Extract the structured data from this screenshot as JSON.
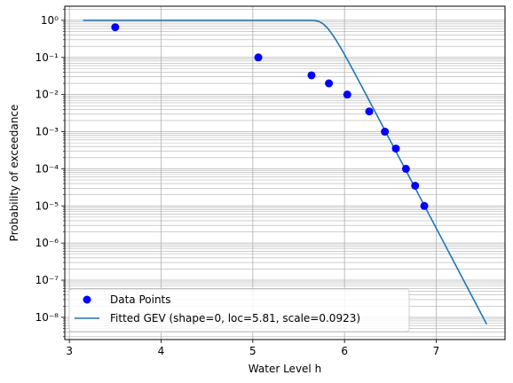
{
  "chart_data": {
    "type": "scatter",
    "xlabel": "Water Level h",
    "ylabel": "Probability of exceedance",
    "xlim": [
      2.95,
      7.75
    ],
    "ylim_log10": [
      -8.6,
      0.38
    ],
    "yscale": "log",
    "grid": "major and minor",
    "legend_position": "lower-left",
    "x_ticks": [
      3,
      4,
      5,
      6,
      7
    ],
    "y_ticks": [
      {
        "exp": 0,
        "label": "10⁰"
      },
      {
        "exp": -1,
        "label": "10⁻¹"
      },
      {
        "exp": -2,
        "label": "10⁻²"
      },
      {
        "exp": -3,
        "label": "10⁻³"
      },
      {
        "exp": -4,
        "label": "10⁻⁴"
      },
      {
        "exp": -5,
        "label": "10⁻⁵"
      },
      {
        "exp": -6,
        "label": "10⁻⁶"
      },
      {
        "exp": -7,
        "label": "10⁻⁷"
      },
      {
        "exp": -8,
        "label": "10⁻⁸"
      }
    ],
    "series": [
      {
        "name": "Data Points",
        "kind": "scatter",
        "color": "#0000ff",
        "points": [
          {
            "x": 3.5,
            "y": 0.65
          },
          {
            "x": 5.06,
            "y": 0.1
          },
          {
            "x": 5.64,
            "y": 0.033
          },
          {
            "x": 5.83,
            "y": 0.02
          },
          {
            "x": 6.03,
            "y": 0.01
          },
          {
            "x": 6.27,
            "y": 0.0035
          },
          {
            "x": 6.44,
            "y": 0.001
          },
          {
            "x": 6.56,
            "y": 0.00035
          },
          {
            "x": 6.67,
            "y": 0.0001
          },
          {
            "x": 6.77,
            "y": 3.5e-05
          },
          {
            "x": 6.87,
            "y": 1e-05
          }
        ]
      },
      {
        "name": "Fitted GEV (shape=0, loc=5.81, scale=0.0923)",
        "kind": "line",
        "color": "#1f77b4",
        "shape": 0,
        "loc": 5.81,
        "scale": 0.0923,
        "x_range": [
          3.15,
          7.55
        ]
      }
    ]
  }
}
